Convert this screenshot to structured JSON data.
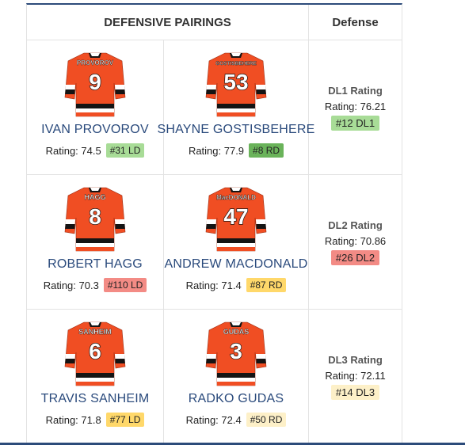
{
  "headers": {
    "pairings": "DEFENSIVE PAIRINGS",
    "defense": "Defense"
  },
  "rows": [
    {
      "p1": {
        "name": "IVAN PROVOROV",
        "jersey_name": "PROVOROV",
        "number": "9",
        "rating_text": "Rating: 74.5",
        "badge": "#31 LD",
        "badge_color": "#a8dc97"
      },
      "p2": {
        "name": "SHAYNE GOSTISBEHERE",
        "jersey_name": "GOSTISBEHERE",
        "number": "53",
        "rating_text": "Rating: 77.9",
        "badge": "#8 RD",
        "badge_color": "#6ab35a"
      },
      "def": {
        "title": "DL1 Rating",
        "rating_text": "Rating: 76.21",
        "badge": "#12 DL1",
        "badge_color": "#a8dc97"
      }
    },
    {
      "p1": {
        "name": "ROBERT HAGG",
        "jersey_name": "HAGG",
        "number": "8",
        "rating_text": "Rating: 70.3",
        "badge": "#110 LD",
        "badge_color": "#f38b85"
      },
      "p2": {
        "name": "ANDREW MACDONALD",
        "jersey_name": "MacDONALD",
        "number": "47",
        "rating_text": "Rating: 71.4",
        "badge": "#87 RD",
        "badge_color": "#ffd86a"
      },
      "def": {
        "title": "DL2 Rating",
        "rating_text": "Rating: 70.86",
        "badge": "#26 DL2",
        "badge_color": "#f38b85"
      }
    },
    {
      "p1": {
        "name": "TRAVIS SANHEIM",
        "jersey_name": "SANHEIM",
        "number": "6",
        "rating_text": "Rating: 71.8",
        "badge": "#77 LD",
        "badge_color": "#ffd86a"
      },
      "p2": {
        "name": "RADKO GUDAS",
        "jersey_name": "GUDAS",
        "number": "3",
        "rating_text": "Rating: 72.4",
        "badge": "#50 RD",
        "badge_color": "#fdf0c8"
      },
      "def": {
        "title": "DL3 Rating",
        "rating_text": "Rating: 72.11",
        "badge": "#14 DL3",
        "badge_color": "#fdf0c8"
      }
    }
  ],
  "colors": {
    "jersey_orange": "#f04e23",
    "jersey_black": "#141414",
    "jersey_white": "#ffffff",
    "accent_navy": "#2c4b7a"
  }
}
